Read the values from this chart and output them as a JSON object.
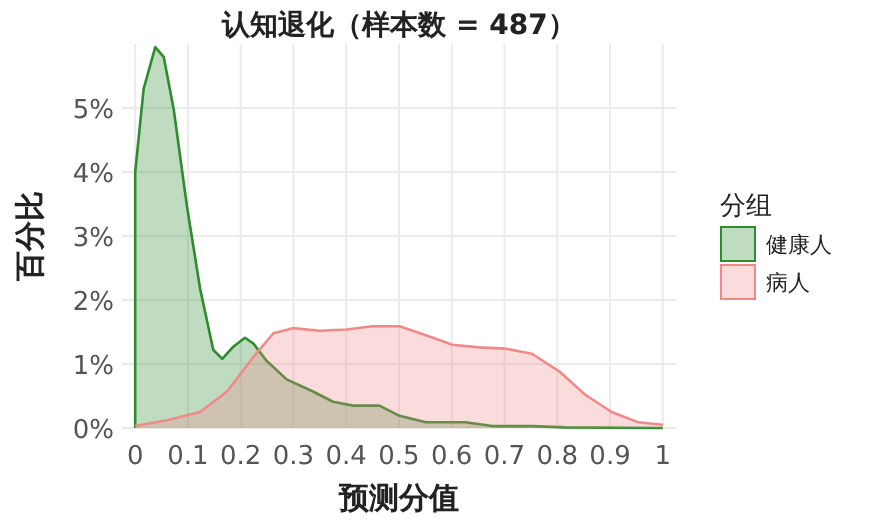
{
  "chart_data": {
    "type": "area",
    "title": "认知退化（样本数 = 487）",
    "xlabel": "预测分值",
    "ylabel": "百分比",
    "legend_title": "分组",
    "series": [
      {
        "name": "健康人",
        "color": "#2e8b2e",
        "x": [
          0,
          0,
          0.016,
          0.038,
          0.054,
          0.073,
          0.098,
          0.123,
          0.148,
          0.165,
          0.186,
          0.208,
          0.224,
          0.249,
          0.287,
          0.337,
          0.375,
          0.413,
          0.463,
          0.501,
          0.551,
          0.626,
          0.677,
          0.752,
          0.815,
          1
        ],
        "values": [
          0,
          4.0,
          5.3,
          5.95,
          5.8,
          4.98,
          3.47,
          2.18,
          1.22,
          1.08,
          1.27,
          1.41,
          1.32,
          1.05,
          0.76,
          0.57,
          0.41,
          0.35,
          0.35,
          0.19,
          0.09,
          0.09,
          0.03,
          0.03,
          0.01,
          0
        ]
      },
      {
        "name": "病人",
        "color": "#f08a8a",
        "x": [
          0,
          0.06,
          0.123,
          0.174,
          0.224,
          0.262,
          0.299,
          0.35,
          0.4,
          0.45,
          0.501,
          0.551,
          0.601,
          0.652,
          0.702,
          0.752,
          0.803,
          0.853,
          0.903,
          0.953,
          1
        ],
        "values": [
          0.03,
          0.12,
          0.25,
          0.57,
          1.11,
          1.48,
          1.56,
          1.52,
          1.54,
          1.59,
          1.59,
          1.45,
          1.3,
          1.26,
          1.24,
          1.16,
          0.89,
          0.52,
          0.25,
          0.09,
          0.05
        ]
      }
    ],
    "xlim": [
      -0.025,
      1.025
    ],
    "xticks": [
      0,
      0.1,
      0.2,
      0.3,
      0.4,
      0.5,
      0.6,
      0.7,
      0.8,
      0.9,
      1
    ],
    "ylim": [
      0,
      6
    ],
    "yticks": [
      {
        "value": 0,
        "label": "0%"
      },
      {
        "value": 1,
        "label": "1%"
      },
      {
        "value": 2,
        "label": "2%"
      },
      {
        "value": 3,
        "label": "3%"
      },
      {
        "value": 4,
        "label": "4%"
      },
      {
        "value": 5,
        "label": "5%"
      }
    ],
    "grid": true,
    "legend": "right"
  }
}
